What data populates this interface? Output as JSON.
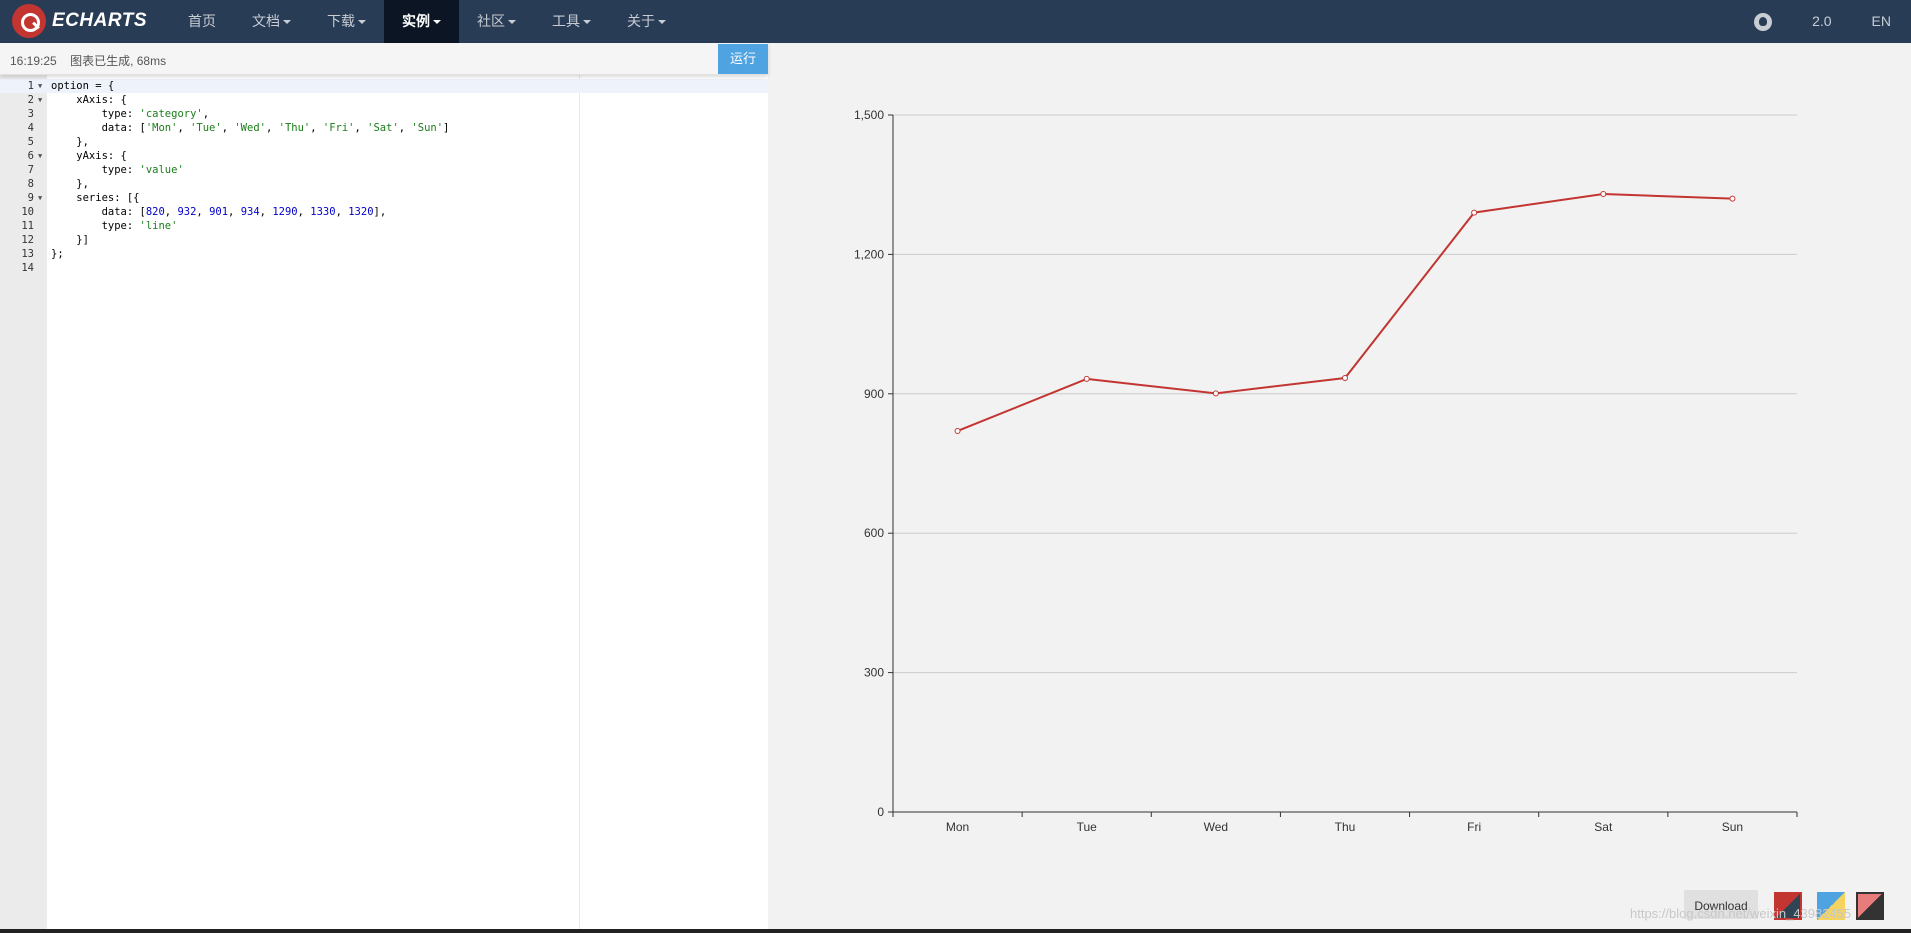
{
  "navbar": {
    "logo_text": "ECHARTS",
    "items": [
      {
        "label": "首页",
        "dropdown": false,
        "active": false
      },
      {
        "label": "文档",
        "dropdown": true,
        "active": false
      },
      {
        "label": "下载",
        "dropdown": true,
        "active": false
      },
      {
        "label": "实例",
        "dropdown": true,
        "active": true
      },
      {
        "label": "社区",
        "dropdown": true,
        "active": false
      },
      {
        "label": "工具",
        "dropdown": true,
        "active": false
      },
      {
        "label": "关于",
        "dropdown": true,
        "active": false
      }
    ],
    "github_icon": "github-icon",
    "version": "2.0",
    "language": "EN"
  },
  "status": {
    "time": "16:19:25",
    "message": "图表已生成, 68ms"
  },
  "run_button": "运行",
  "editor": {
    "lines": [
      {
        "num": "1",
        "fold": true,
        "html": "option = {"
      },
      {
        "num": "2",
        "fold": true,
        "html": "    xAxis: {"
      },
      {
        "num": "3",
        "fold": false,
        "html": "        type: <s>'category'</s>,"
      },
      {
        "num": "4",
        "fold": false,
        "html": "        data: [<s>'Mon'</s>, <s>'Tue'</s>, <s>'Wed'</s>, <s>'Thu'</s>, <s>'Fri'</s>, <s>'Sat'</s>, <s>'Sun'</s>]"
      },
      {
        "num": "5",
        "fold": false,
        "html": "    },"
      },
      {
        "num": "6",
        "fold": true,
        "html": "    yAxis: {"
      },
      {
        "num": "7",
        "fold": false,
        "html": "        type: <s>'value'</s>"
      },
      {
        "num": "8",
        "fold": false,
        "html": "    },"
      },
      {
        "num": "9",
        "fold": true,
        "html": "    series: [{"
      },
      {
        "num": "10",
        "fold": false,
        "html": "        data: [<n>820</n>, <n>932</n>, <n>901</n>, <n>934</n>, <n>1290</n>, <n>1330</n>, <n>1320</n>],"
      },
      {
        "num": "11",
        "fold": false,
        "html": "        type: <s>'line'</s>"
      },
      {
        "num": "12",
        "fold": false,
        "html": "    }]"
      },
      {
        "num": "13",
        "fold": false,
        "html": "};"
      },
      {
        "num": "14",
        "fold": false,
        "html": ""
      }
    ]
  },
  "chart_data": {
    "type": "line",
    "categories": [
      "Mon",
      "Tue",
      "Wed",
      "Thu",
      "Fri",
      "Sat",
      "Sun"
    ],
    "series": [
      {
        "values": [
          820,
          932,
          901,
          934,
          1290,
          1330,
          1320
        ],
        "color": "#c23531"
      }
    ],
    "ylim": [
      0,
      1500
    ],
    "yticks": [
      0,
      300,
      600,
      900,
      1200,
      1500
    ],
    "ytick_labels": [
      "0",
      "300",
      "600",
      "900",
      "1,200",
      "1,500"
    ],
    "grid": true,
    "title": "",
    "xlabel": "",
    "ylabel": ""
  },
  "controls": {
    "download_label": "Download",
    "themes": [
      "theme-default",
      "theme-light",
      "theme-dark"
    ]
  },
  "watermark": "https://blog.csdn.net/weixin_43982455"
}
